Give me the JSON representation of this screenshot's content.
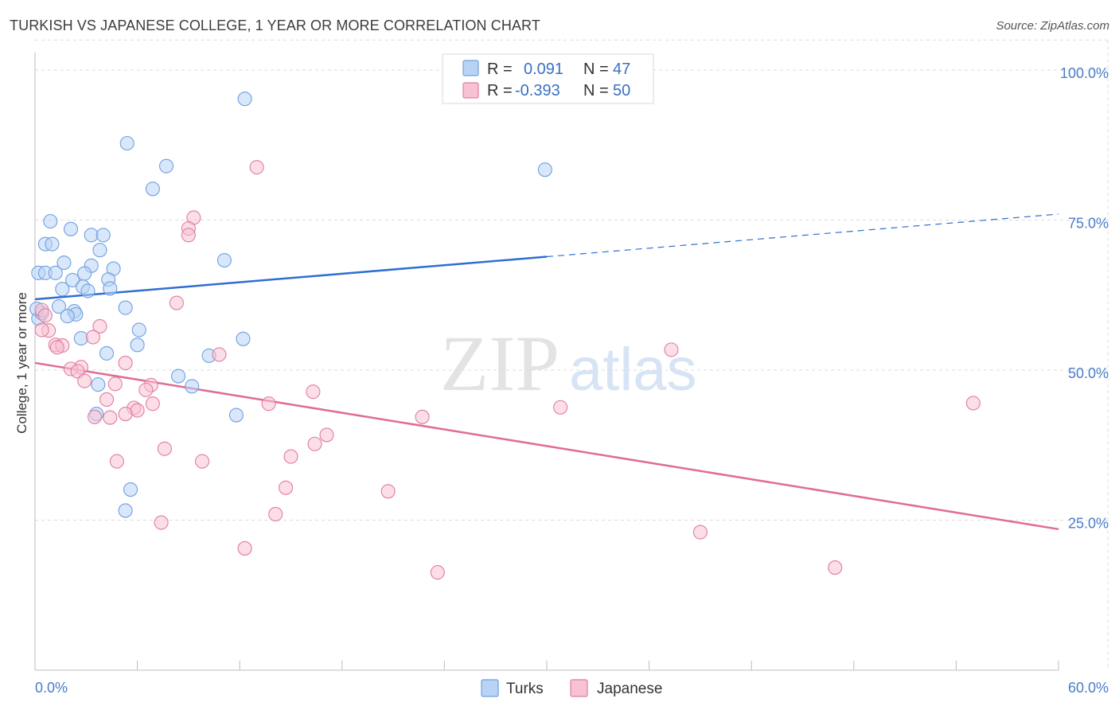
{
  "title": "TURKISH VS JAPANESE COLLEGE, 1 YEAR OR MORE CORRELATION CHART",
  "source": "Source: ZipAtlas.com",
  "watermark": {
    "zip": "ZIP",
    "atlas": "atlas"
  },
  "chart_data": {
    "type": "scatter",
    "xlabel": "",
    "ylabel": "College, 1 year or more",
    "xlim": [
      0,
      60
    ],
    "ylim": [
      0,
      105
    ],
    "x_tick_labels": {
      "min": "0.0%",
      "max": "60.0%"
    },
    "y_ticks": [
      {
        "value": 100,
        "label": "100.0%"
      },
      {
        "value": 75,
        "label": "75.0%"
      },
      {
        "value": 50,
        "label": "50.0%"
      },
      {
        "value": 25,
        "label": "25.0%"
      }
    ],
    "legend": [
      {
        "name": "Turks",
        "r_label": "R =",
        "r_value": "0.091",
        "n_label": "N =",
        "n_value": "47",
        "color": "#6fa0e0",
        "fill": "#b9d3f5"
      },
      {
        "name": "Japanese",
        "r_label": "R =",
        "r_value": "-0.393",
        "n_label": "N =",
        "n_value": "50",
        "color": "#e07da0",
        "fill": "#f7c3d4"
      }
    ],
    "series": [
      {
        "name": "Turks",
        "color": "#6fa0e0",
        "line_color": "#2f6fd0",
        "trend": {
          "x0": 0,
          "y0": 61.8,
          "x1": 30,
          "y1": 68.9,
          "dash_to_x": 60,
          "dash_to_y": 76.0
        },
        "points": [
          [
            12.3,
            95.2
          ],
          [
            5.4,
            87.8
          ],
          [
            7.7,
            84.0
          ],
          [
            29.9,
            83.4
          ],
          [
            6.9,
            80.2
          ],
          [
            0.9,
            74.8
          ],
          [
            2.1,
            73.5
          ],
          [
            3.3,
            72.5
          ],
          [
            4.0,
            72.5
          ],
          [
            0.6,
            71.0
          ],
          [
            1.0,
            71.0
          ],
          [
            3.8,
            70.0
          ],
          [
            11.1,
            68.3
          ],
          [
            1.7,
            67.9
          ],
          [
            3.3,
            67.4
          ],
          [
            4.6,
            66.9
          ],
          [
            0.2,
            66.2
          ],
          [
            0.6,
            66.2
          ],
          [
            1.2,
            66.2
          ],
          [
            2.9,
            66.1
          ],
          [
            2.2,
            65.0
          ],
          [
            4.3,
            65.1
          ],
          [
            1.6,
            63.5
          ],
          [
            2.8,
            63.9
          ],
          [
            4.4,
            63.6
          ],
          [
            3.1,
            63.2
          ],
          [
            1.4,
            60.6
          ],
          [
            5.3,
            60.4
          ],
          [
            2.3,
            59.8
          ],
          [
            2.4,
            59.3
          ],
          [
            1.9,
            59.0
          ],
          [
            6.1,
            56.7
          ],
          [
            2.7,
            55.3
          ],
          [
            12.2,
            55.2
          ],
          [
            6.0,
            54.2
          ],
          [
            4.2,
            52.8
          ],
          [
            10.2,
            52.4
          ],
          [
            8.4,
            49.0
          ],
          [
            9.2,
            47.3
          ],
          [
            3.7,
            47.6
          ],
          [
            11.8,
            42.5
          ],
          [
            3.6,
            42.7
          ],
          [
            5.6,
            30.1
          ],
          [
            5.3,
            26.6
          ],
          [
            0.2,
            58.6
          ],
          [
            0.4,
            59.5
          ],
          [
            0.1,
            60.2
          ]
        ]
      },
      {
        "name": "Japanese",
        "color": "#e07da0",
        "line_color": "#e06c98",
        "trend": {
          "x0": 0,
          "y0": 51.2,
          "x1": 60,
          "y1": 23.5
        },
        "points": [
          [
            13.0,
            83.8
          ],
          [
            9.3,
            75.4
          ],
          [
            9.0,
            73.6
          ],
          [
            9.0,
            72.5
          ],
          [
            8.3,
            61.2
          ],
          [
            0.4,
            60.0
          ],
          [
            0.6,
            59.1
          ],
          [
            0.8,
            56.6
          ],
          [
            0.4,
            56.7
          ],
          [
            3.8,
            57.3
          ],
          [
            1.2,
            54.2
          ],
          [
            3.4,
            55.5
          ],
          [
            1.6,
            54.1
          ],
          [
            1.3,
            53.8
          ],
          [
            37.3,
            53.4
          ],
          [
            10.8,
            52.6
          ],
          [
            5.3,
            51.2
          ],
          [
            2.7,
            50.5
          ],
          [
            2.1,
            50.2
          ],
          [
            2.5,
            49.8
          ],
          [
            2.9,
            48.2
          ],
          [
            4.7,
            47.7
          ],
          [
            6.8,
            47.5
          ],
          [
            6.5,
            46.7
          ],
          [
            16.3,
            46.4
          ],
          [
            4.2,
            45.1
          ],
          [
            6.9,
            44.4
          ],
          [
            13.7,
            44.4
          ],
          [
            30.8,
            43.8
          ],
          [
            55.0,
            44.5
          ],
          [
            5.8,
            43.7
          ],
          [
            6.0,
            43.3
          ],
          [
            5.3,
            42.7
          ],
          [
            22.7,
            42.2
          ],
          [
            3.5,
            42.2
          ],
          [
            4.4,
            42.1
          ],
          [
            17.1,
            39.2
          ],
          [
            16.4,
            37.7
          ],
          [
            7.6,
            36.9
          ],
          [
            15.0,
            35.6
          ],
          [
            4.8,
            34.8
          ],
          [
            9.8,
            34.8
          ],
          [
            14.7,
            30.4
          ],
          [
            20.7,
            29.8
          ],
          [
            14.1,
            26.0
          ],
          [
            7.4,
            24.6
          ],
          [
            39.0,
            23.0
          ],
          [
            12.3,
            20.3
          ],
          [
            46.9,
            17.1
          ],
          [
            23.6,
            16.3
          ]
        ]
      }
    ]
  }
}
